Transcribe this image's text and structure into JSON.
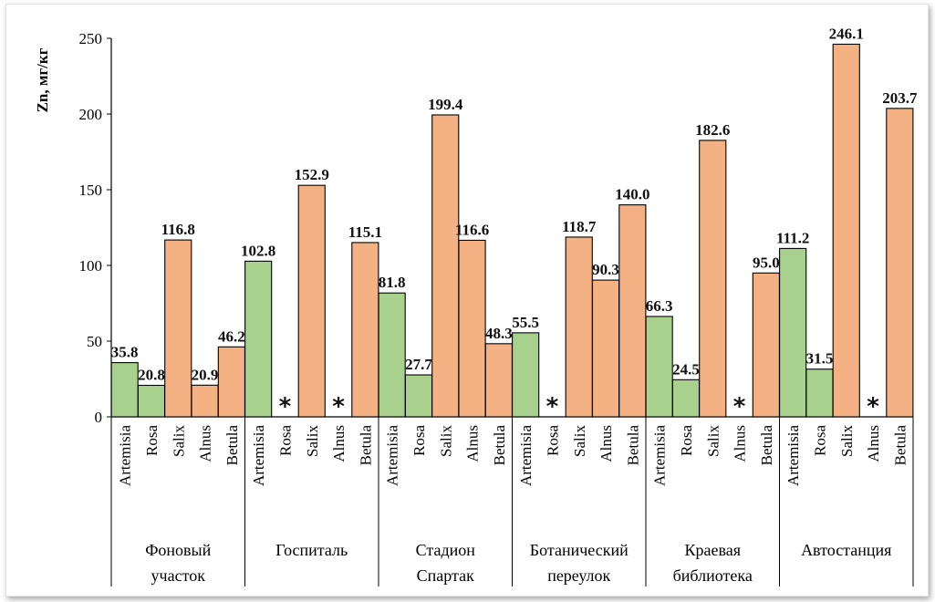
{
  "chart_data": {
    "type": "bar",
    "ylabel": "Zn, мг/кг",
    "ylim": [
      0,
      250
    ],
    "yticks": [
      0,
      50,
      100,
      150,
      200,
      250
    ],
    "grid": false,
    "missing_marker": "*",
    "colors": {
      "Artemisia": "#a9d18e",
      "Rosa": "#a9d18e",
      "other": "#f4b183"
    },
    "species": [
      "Artemisia",
      "Rosa",
      "Salix",
      "Alnus",
      "Betula"
    ],
    "groups": [
      {
        "name_lines": [
          "Фоновый",
          "участок"
        ],
        "values": [
          35.8,
          20.8,
          116.8,
          20.9,
          46.2
        ],
        "labels": [
          "35.8",
          "20.8",
          "116.8",
          "20.9",
          "46.2"
        ]
      },
      {
        "name_lines": [
          "Госпиталь"
        ],
        "values": [
          102.8,
          null,
          152.9,
          null,
          115.1
        ],
        "labels": [
          "102.8",
          "*",
          "152.9",
          "*",
          "115.1"
        ]
      },
      {
        "name_lines": [
          "Стадион",
          "Спартак"
        ],
        "values": [
          81.8,
          27.7,
          199.4,
          116.6,
          48.3
        ],
        "labels": [
          "81.8",
          "27.7",
          "199.4",
          "116.6",
          "48.3"
        ]
      },
      {
        "name_lines": [
          "Ботанический",
          "переулок"
        ],
        "values": [
          55.5,
          null,
          118.7,
          90.3,
          140.0
        ],
        "labels": [
          "55.5",
          "*",
          "118.7",
          "90.3",
          "140.0"
        ]
      },
      {
        "name_lines": [
          "Краевая",
          "библиотека"
        ],
        "values": [
          66.3,
          24.5,
          182.6,
          null,
          95.0
        ],
        "labels": [
          "66.3",
          "24.5",
          "182.6",
          "*",
          "95.0"
        ]
      },
      {
        "name_lines": [
          "Автостанция"
        ],
        "values": [
          111.2,
          31.5,
          246.1,
          null,
          203.7
        ],
        "labels": [
          "111.2",
          "31.5",
          "246.1",
          "*",
          "203.7"
        ]
      }
    ]
  }
}
